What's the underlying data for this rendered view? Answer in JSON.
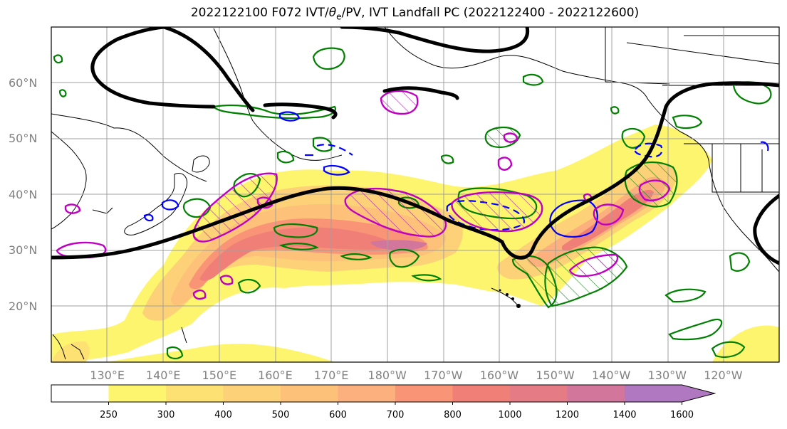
{
  "title": {
    "prefix": "2022122100 F072 IVT/",
    "theta": "θ",
    "theta_sub": "e",
    "suffix": "/PV, IVT Landfall PC (2022122400 - 2022122600)"
  },
  "map": {
    "projection": "PlateCarree",
    "lon_range_east": [
      120,
      250
    ],
    "lat_range": [
      10,
      70
    ],
    "lat_ticks": [
      {
        "value": 60,
        "label": "60°N"
      },
      {
        "value": 50,
        "label": "50°N"
      },
      {
        "value": 40,
        "label": "40°N"
      },
      {
        "value": 30,
        "label": "30°N"
      },
      {
        "value": 20,
        "label": "20°N"
      }
    ],
    "lon_ticks": [
      {
        "value": 130,
        "label": "130°E"
      },
      {
        "value": 140,
        "label": "140°E"
      },
      {
        "value": 150,
        "label": "150°E"
      },
      {
        "value": 160,
        "label": "160°E"
      },
      {
        "value": 170,
        "label": "170°E"
      },
      {
        "value": 180,
        "label": "180°W"
      },
      {
        "value": 190,
        "label": "170°W"
      },
      {
        "value": 200,
        "label": "160°W"
      },
      {
        "value": 210,
        "label": "150°W"
      },
      {
        "value": 220,
        "label": "140°W"
      },
      {
        "value": 230,
        "label": "130°W"
      },
      {
        "value": 240,
        "label": "120°W"
      }
    ],
    "gridlines": true,
    "colors": {
      "pv_contour": "#000000",
      "theta_e_contour": "#008000",
      "cold_contour": "#0000ff",
      "landfall_contour": "#c000c0",
      "coastline": "#000000",
      "grid": "#a0a0a0"
    }
  },
  "colorbar": {
    "levels": [
      250,
      300,
      400,
      500,
      600,
      700,
      800,
      1000,
      1200,
      1400,
      1600
    ],
    "tick_labels": [
      "250",
      "300",
      "400",
      "500",
      "600",
      "700",
      "800",
      "1000",
      "1200",
      "1400",
      "1600"
    ],
    "colors": [
      "#ffffff",
      "#fef56e",
      "#fde172",
      "#fcd177",
      "#fdc17a",
      "#fcb07d",
      "#f99576",
      "#f07f77",
      "#e57b84",
      "#d2779b",
      "#af78c0"
    ],
    "extend": "max"
  }
}
